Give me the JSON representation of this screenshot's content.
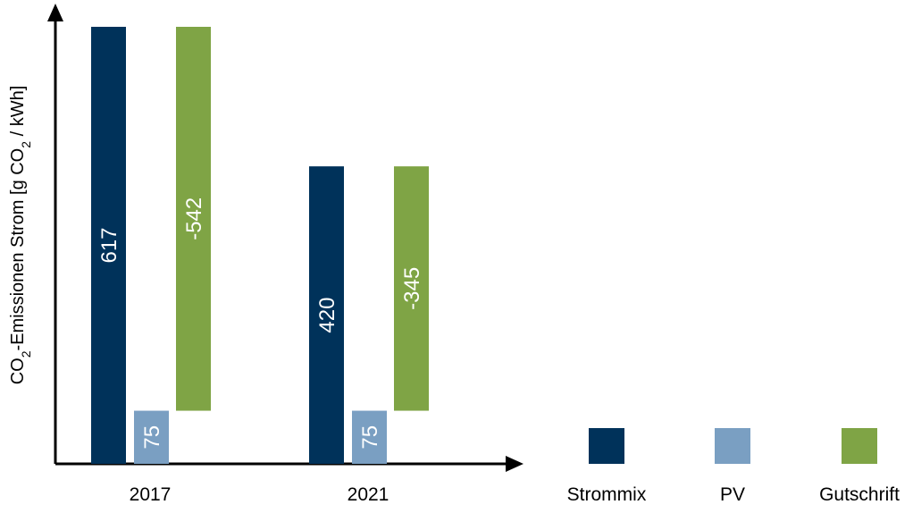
{
  "chart_data": {
    "type": "bar",
    "subtype": "waterfall",
    "title": "",
    "xlabel": "",
    "ylabel_parts": {
      "pre": "CO",
      "sub1": "2",
      "mid": "-Emissionen Strom [g CO",
      "sub2": "2",
      "post": " / kWh]"
    },
    "ylim": [
      0,
      617
    ],
    "grid": false,
    "legend_position": "bottom-right",
    "categories": [
      "2017",
      "2021"
    ],
    "series": [
      {
        "name": "Strommix",
        "color": "#00325a"
      },
      {
        "name": "PV",
        "color": "#7a9fc2"
      },
      {
        "name": "Gutschrift",
        "color": "#7fa445"
      }
    ],
    "groups": [
      {
        "category": "2017",
        "bars": [
          {
            "series": "Strommix",
            "label": "617",
            "base": 0,
            "top": 617
          },
          {
            "series": "PV",
            "label": "75",
            "base": 0,
            "top": 75
          },
          {
            "series": "Gutschrift",
            "label": "-542",
            "base": 75,
            "top": 617
          }
        ]
      },
      {
        "category": "2021",
        "bars": [
          {
            "series": "Strommix",
            "label": "420",
            "base": 0,
            "top": 420
          },
          {
            "series": "PV",
            "label": "75",
            "base": 0,
            "top": 75
          },
          {
            "series": "Gutschrift",
            "label": "-345",
            "base": 75,
            "top": 420
          }
        ]
      }
    ]
  }
}
